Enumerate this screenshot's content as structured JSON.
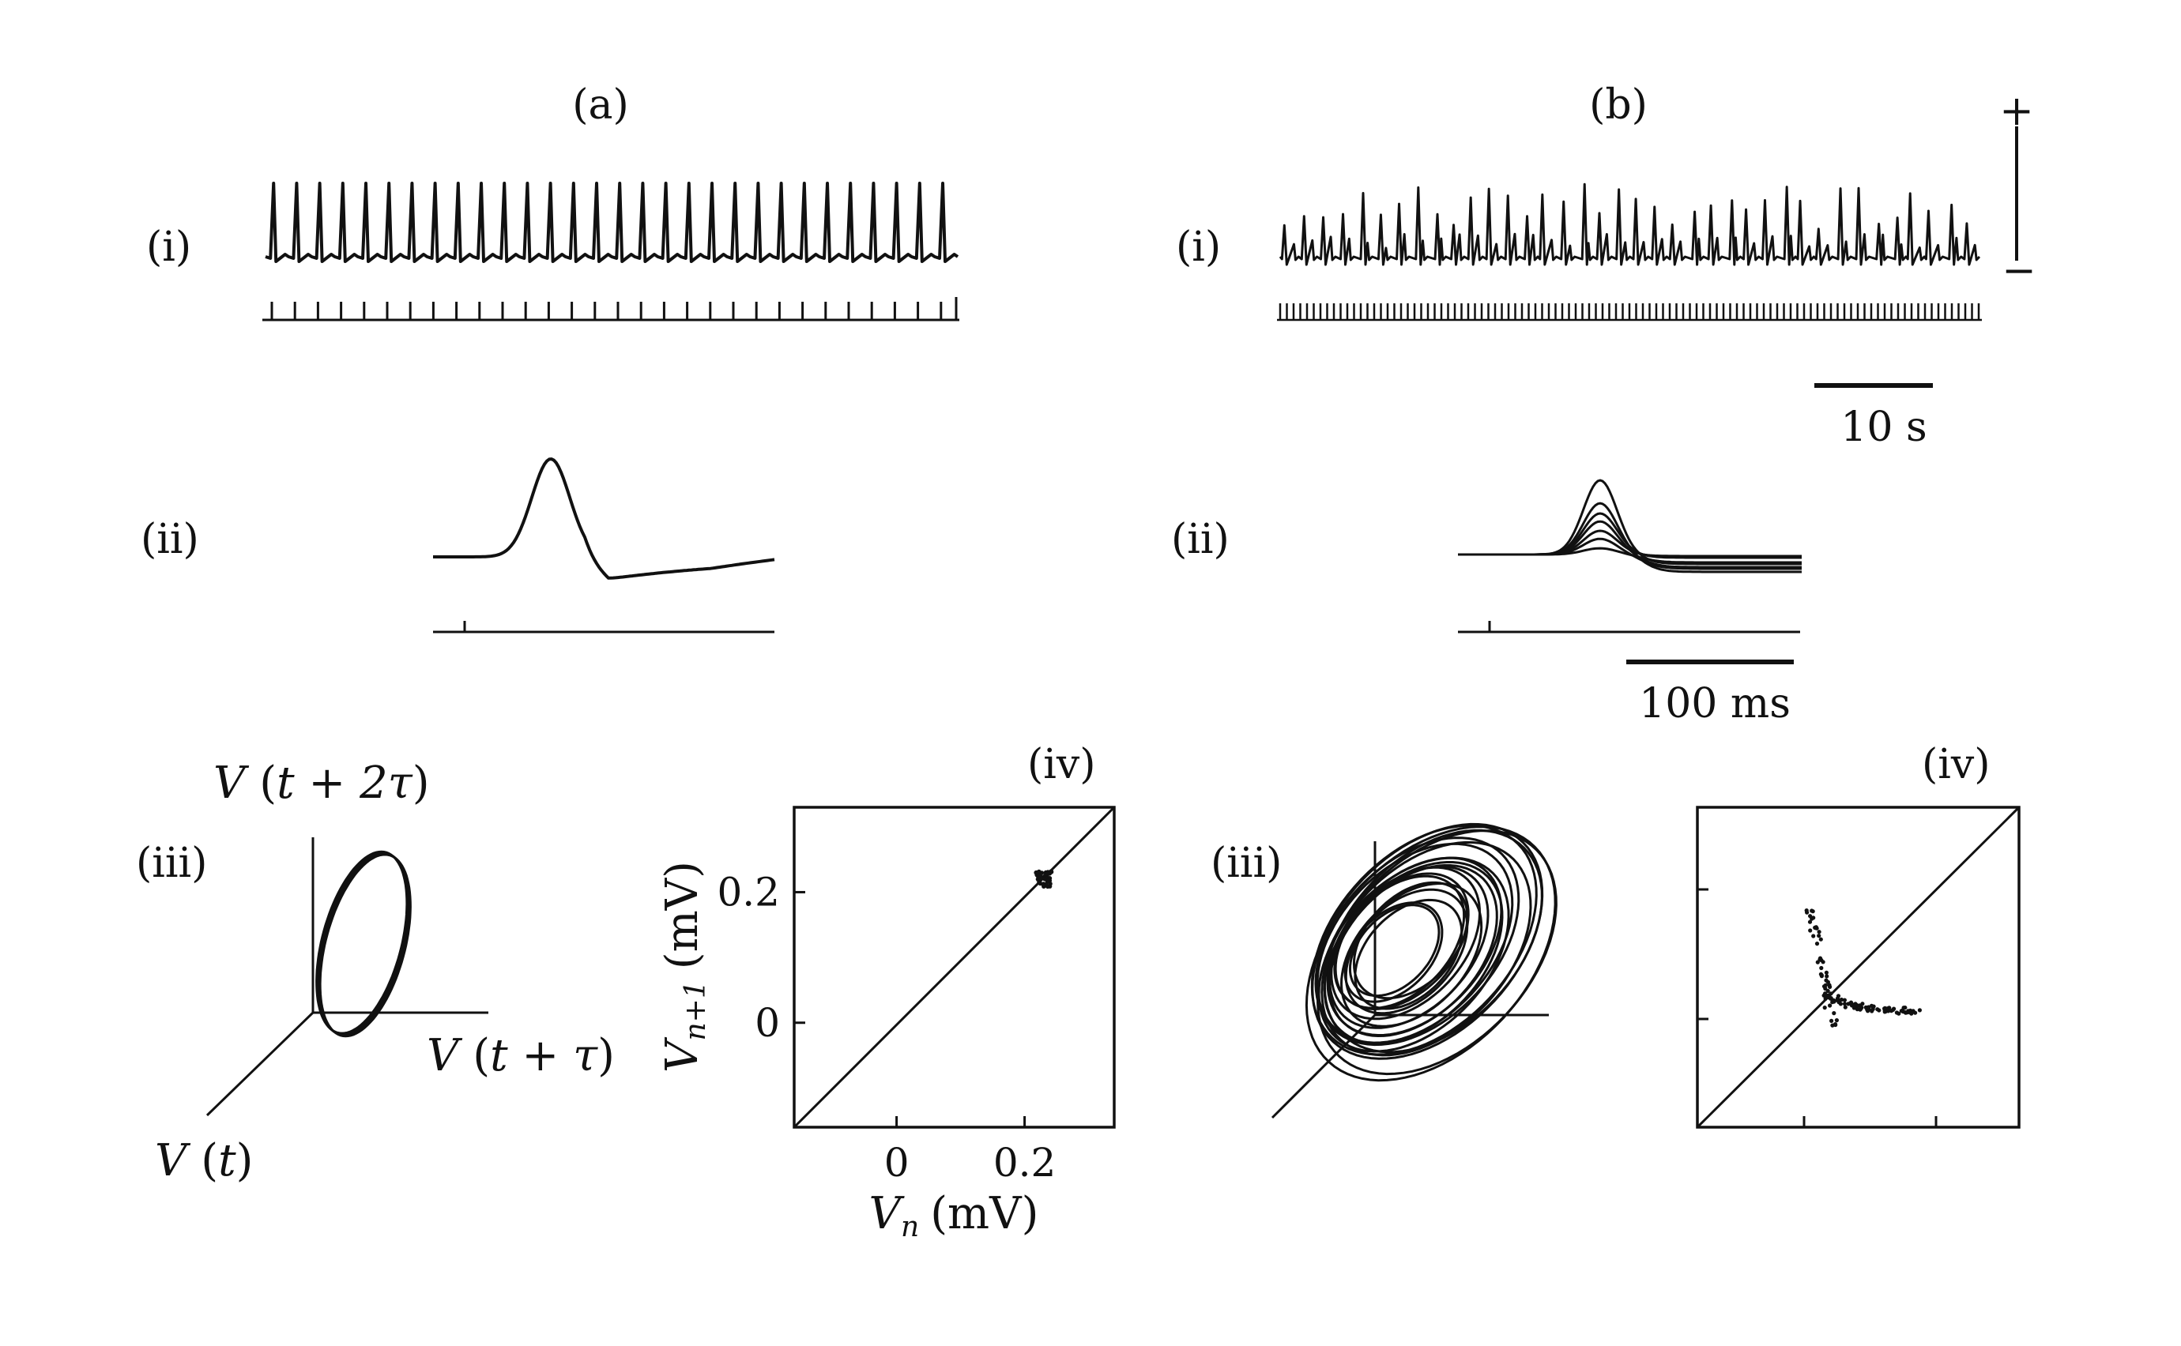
{
  "figure": {
    "panel_a_label": "(a)",
    "panel_b_label": "(b)",
    "row_i_label": "(i)",
    "row_ii_label": "(ii)",
    "row_iii_label": "(iii)",
    "row_iv_label": "(iv)",
    "voltage_polarity_plus": "+",
    "voltage_polarity_minus": "−",
    "time_scalebar_long": "10 s",
    "time_scalebar_short": "100 ms"
  },
  "chart_data": [
    {
      "type": "line",
      "panel": "a-i",
      "description_of_marks": "periodic spike train with evenly spaced stimulus ticks",
      "spike_count": 30,
      "stimulus_tick_count": 30
    },
    {
      "type": "line",
      "panel": "b-i",
      "description_of_marks": "irregular spike train with dense stimulus ticks",
      "spike_count": 38
    },
    {
      "type": "line",
      "panel": "a-ii",
      "description_of_marks": "single superimposed action potential waveform"
    },
    {
      "type": "line",
      "panel": "b-ii",
      "description_of_marks": "several superimposed waveforms of varying amplitude",
      "trace_count": 7
    },
    {
      "type": "line",
      "panel": "a-iii",
      "x_label_pre": "V",
      "x_label_var": "t + τ",
      "y_label_pre": "V",
      "y_label_var": "t + 2τ",
      "z_label_pre": "V",
      "z_label_var": "t",
      "description_of_marks": "closed limit-cycle loop in delay coordinates"
    },
    {
      "type": "scatter",
      "panel": "a-iv",
      "x_label_sym": "V",
      "x_label_sub": "n",
      "x_label_unit": "(mV)",
      "y_label_sym": "V",
      "y_label_sub": "n+1",
      "y_label_unit": "(mV)",
      "xlim": [
        -0.16,
        0.34
      ],
      "ylim": [
        -0.16,
        0.33
      ],
      "x_ticks": [
        "0",
        "0.2"
      ],
      "y_ticks": [
        "0.2",
        "0"
      ],
      "x_tick_values": [
        0,
        0.2
      ],
      "y_tick_values": [
        0.2,
        0
      ],
      "identity_line": true,
      "points_center": [
        0.23,
        0.22
      ],
      "points_spread": 0.012,
      "point_count": 40
    },
    {
      "type": "line",
      "panel": "b-iii",
      "description_of_marks": "chaotic attractor with many nested loops in delay coordinates"
    },
    {
      "type": "scatter",
      "panel": "b-iv",
      "xlim": [
        -0.16,
        0.34
      ],
      "ylim": [
        -0.16,
        0.33
      ],
      "identity_line": true,
      "description_of_marks": "return map scatter forming a curved one-dimensional map",
      "point_count": 130
    }
  ]
}
